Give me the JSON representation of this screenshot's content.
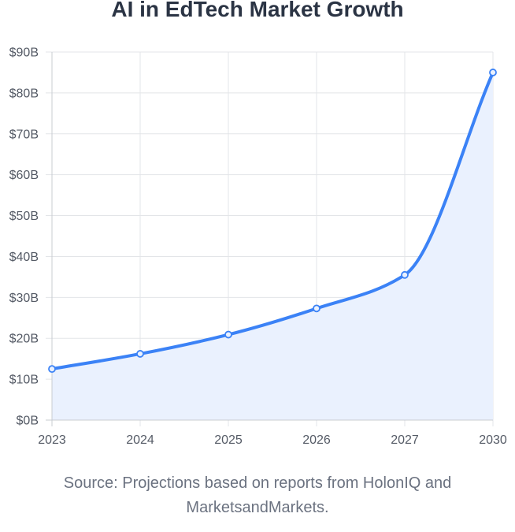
{
  "colors": {
    "line": "#3b82f6",
    "fill": "#eaf1fe",
    "grid": "#e3e5e8",
    "axis": "#c8ccd2",
    "title": "#2b3444",
    "text": "#555b66",
    "source": "#6b7280"
  },
  "chart_data": {
    "type": "line",
    "title": "AI in EdTech Market Growth",
    "categories": [
      "2023",
      "2024",
      "2025",
      "2026",
      "2027",
      "2030"
    ],
    "series": [
      {
        "values": [
          12.5,
          16.2,
          20.9,
          27.3,
          35.5,
          85.0
        ]
      }
    ],
    "y_ticks": [
      "$0B",
      "$10B",
      "$20B",
      "$30B",
      "$40B",
      "$50B",
      "$60B",
      "$70B",
      "$80B",
      "$90B"
    ],
    "ylim": [
      0,
      90
    ],
    "grid": true,
    "area_fill": true,
    "xlabel": "",
    "ylabel": ""
  },
  "footer": {
    "source_line1": "Source: Projections based on reports from HolonIQ and",
    "source_line2": "MarketsandMarkets."
  }
}
